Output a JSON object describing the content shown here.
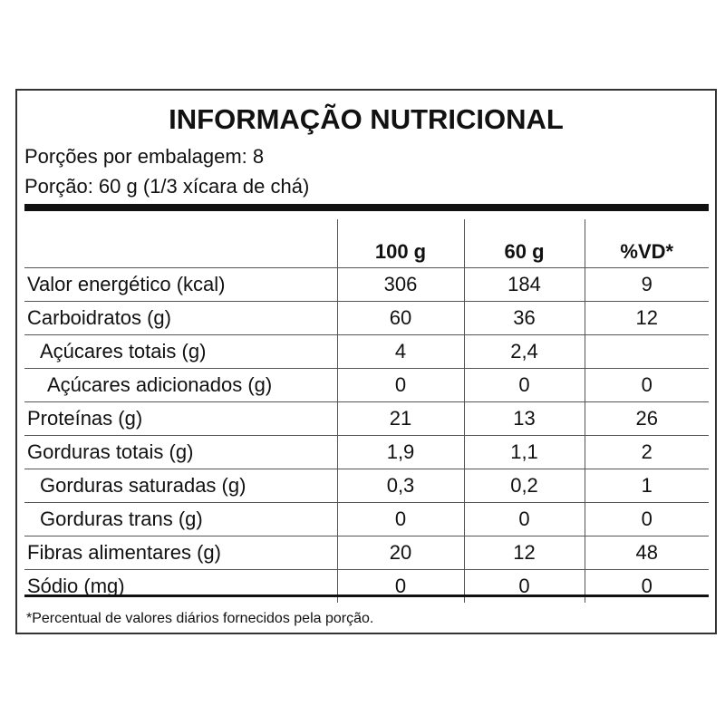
{
  "header": {
    "title": "INFORMAÇÃO NUTRICIONAL",
    "servings": "Porções por embalagem: 8",
    "portion": "Porção: 60 g (1/3 xícara de chá)"
  },
  "table": {
    "columns": [
      "100 g",
      "60 g",
      "%VD*"
    ],
    "rows": [
      [
        "Valor energético (kcal)",
        306,
        184,
        9
      ],
      [
        "Carboidratos (g)",
        60,
        36,
        12
      ],
      [
        "Açúcares totais (g)",
        4,
        "2,4",
        null
      ],
      [
        "Açúcares adicionados (g)",
        0,
        0,
        0
      ],
      [
        "Proteínas (g)",
        21,
        13,
        26
      ],
      [
        "Gorduras totais (g)",
        "1,9",
        "1,1",
        2
      ],
      [
        "Gorduras saturadas (g)",
        "0,3",
        "0,2",
        1
      ],
      [
        "Gorduras trans (g)",
        0,
        0,
        0
      ],
      [
        "Fibras alimentares (g)",
        20,
        12,
        48
      ],
      [
        "Sódio (mg)",
        0,
        0,
        0
      ]
    ]
  },
  "footnote": "*Percentual de valores diários fornecidos pela porção."
}
